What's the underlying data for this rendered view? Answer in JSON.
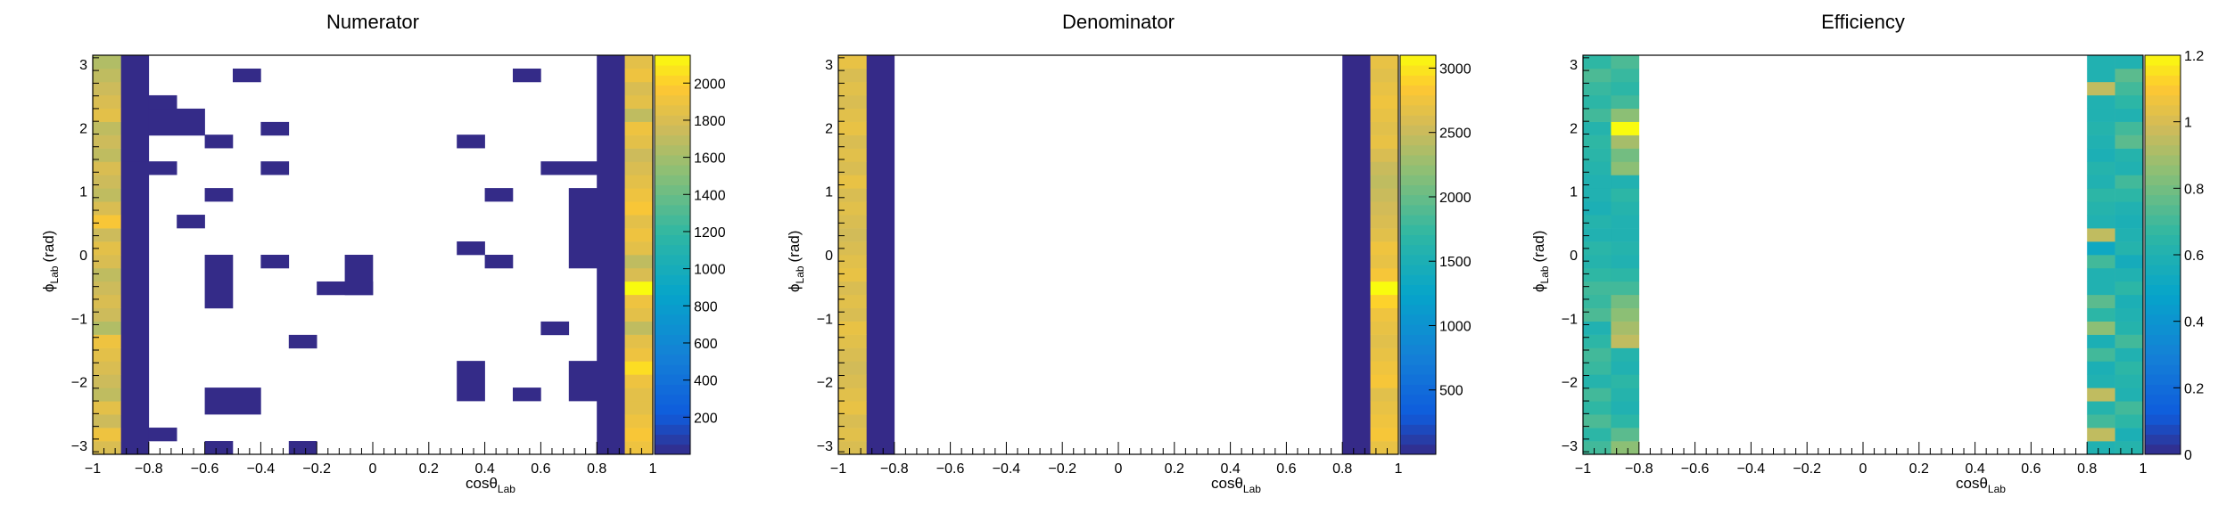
{
  "chart_data": [
    {
      "type": "heatmap",
      "title": "Numerator",
      "x_label": "cosθ",
      "x_sub": "Lab",
      "y_label": "ϕ",
      "y_sub": "Lab",
      "y_unit": "(rad)",
      "xlim": [
        -1,
        1
      ],
      "ylim": [
        -3.14,
        3.14
      ],
      "x_ticks": [
        "−1",
        "−0.8",
        "−0.6",
        "−0.4",
        "−0.2",
        "0",
        "0.2",
        "0.4",
        "0.6",
        "0.8",
        "1"
      ],
      "y_ticks": [
        "−3",
        "−2",
        "−1",
        "0",
        "1",
        "2",
        "3"
      ],
      "z_range": [
        0,
        2150
      ],
      "z_ticks": [
        "200",
        "400",
        "600",
        "800",
        "1000",
        "1200",
        "1400",
        "1600",
        "1800",
        "2000"
      ],
      "edge_left": [
        1800,
        1900,
        1750,
        1850,
        1700,
        1750,
        1800,
        1850,
        1900,
        1650,
        1750,
        1800,
        1750,
        1700,
        1800,
        1850,
        1750,
        1950,
        1800,
        1700,
        1750,
        1800,
        1700,
        1750,
        1700,
        1850,
        1800,
        1750,
        1700,
        1650
      ],
      "edge_right": [
        1900,
        1950,
        1900,
        1850,
        1850,
        1900,
        2050,
        1900,
        1850,
        1700,
        1850,
        1900,
        2150,
        1800,
        1700,
        1850,
        1900,
        1850,
        1950,
        1900,
        1850,
        1800,
        1750,
        1850,
        1900,
        1700,
        1850,
        1800,
        1900,
        1850
      ],
      "interior_cells": [
        [
          -0.9,
          -3.14,
          0.1,
          6.28,
          3
        ],
        [
          0.8,
          -3.14,
          0.1,
          6.28,
          3
        ],
        [
          -0.8,
          -2.93,
          0.1,
          0.21,
          3
        ],
        [
          -0.6,
          -3.14,
          0.1,
          0.21,
          3
        ],
        [
          -0.3,
          -3.14,
          0.1,
          0.21,
          3
        ],
        [
          -0.6,
          -2.51,
          0.2,
          0.42,
          3
        ],
        [
          0.3,
          -2.3,
          0.1,
          0.63,
          3
        ],
        [
          0.5,
          -2.3,
          0.1,
          0.21,
          3
        ],
        [
          0.7,
          -2.3,
          0.1,
          0.63,
          3
        ],
        [
          -0.3,
          -1.47,
          0.1,
          0.21,
          3
        ],
        [
          0.6,
          -1.26,
          0.1,
          0.21,
          3
        ],
        [
          -0.6,
          -0.84,
          0.1,
          0.84,
          3
        ],
        [
          -0.2,
          -0.63,
          0.2,
          0.21,
          3
        ],
        [
          -0.1,
          -0.63,
          0.1,
          0.63,
          3
        ],
        [
          -0.4,
          -0.21,
          0.1,
          0.21,
          3
        ],
        [
          0.4,
          -0.21,
          0.1,
          0.21,
          3
        ],
        [
          0.3,
          0.0,
          0.1,
          0.21,
          3
        ],
        [
          0.7,
          -0.21,
          0.1,
          1.26,
          3
        ],
        [
          -0.7,
          0.42,
          0.1,
          0.21,
          3
        ],
        [
          -0.6,
          0.84,
          0.1,
          0.21,
          3
        ],
        [
          0.4,
          0.84,
          0.1,
          0.21,
          3
        ],
        [
          -0.9,
          1.26,
          0.2,
          0.21,
          3
        ],
        [
          -0.4,
          1.26,
          0.1,
          0.21,
          3
        ],
        [
          0.6,
          1.26,
          0.2,
          0.21,
          3
        ],
        [
          -0.6,
          1.68,
          0.1,
          0.21,
          3
        ],
        [
          0.3,
          1.68,
          0.1,
          0.21,
          3
        ],
        [
          -0.8,
          1.88,
          0.2,
          0.42,
          3
        ],
        [
          -0.4,
          1.88,
          0.1,
          0.21,
          3
        ],
        [
          -0.8,
          2.3,
          0.1,
          0.21,
          3
        ],
        [
          -0.5,
          2.72,
          0.1,
          0.21,
          3
        ],
        [
          0.5,
          2.72,
          0.1,
          0.21,
          3
        ]
      ]
    },
    {
      "type": "heatmap",
      "title": "Denominator",
      "x_label": "cosθ",
      "x_sub": "Lab",
      "y_label": "ϕ",
      "y_sub": "Lab",
      "y_unit": "(rad)",
      "xlim": [
        -1,
        1
      ],
      "ylim": [
        -3.14,
        3.14
      ],
      "x_ticks": [
        "−1",
        "−0.8",
        "−0.6",
        "−0.4",
        "−0.2",
        "0",
        "0.2",
        "0.4",
        "0.6",
        "0.8",
        "1"
      ],
      "y_ticks": [
        "−3",
        "−2",
        "−1",
        "0",
        "1",
        "2",
        "3"
      ],
      "z_range": [
        0,
        3100
      ],
      "z_ticks": [
        "500",
        "1000",
        "1500",
        "2000",
        "2500",
        "3000"
      ],
      "edge_left": [
        2600,
        2650,
        2600,
        2700,
        2650,
        2600,
        2550,
        2600,
        2650,
        2700,
        2600,
        2650,
        2600,
        2700,
        2650,
        2600,
        2550,
        2600,
        2650,
        2600,
        2700,
        2600,
        2650,
        2600,
        2700,
        2650,
        2600,
        2650,
        2600,
        2700
      ],
      "edge_right": [
        2700,
        2800,
        2750,
        2700,
        2650,
        2800,
        2750,
        2700,
        2650,
        2700,
        2750,
        2900,
        3100,
        2800,
        2700,
        2750,
        2650,
        2600,
        2550,
        2500,
        2450,
        2500,
        2600,
        2700,
        2650,
        2700,
        2750,
        2700,
        2650,
        2700
      ],
      "interior_cells": [
        [
          -0.9,
          -3.14,
          0.1,
          6.28,
          3
        ],
        [
          0.8,
          -3.14,
          0.1,
          6.28,
          3
        ]
      ]
    },
    {
      "type": "heatmap",
      "title": "Efficiency",
      "x_label": "cosθ",
      "x_sub": "Lab",
      "y_label": "ϕ",
      "y_sub": "Lab",
      "y_unit": "(rad)",
      "xlim": [
        -1,
        1
      ],
      "ylim": [
        -3.14,
        3.14
      ],
      "x_ticks": [
        "−1",
        "−0.8",
        "−0.6",
        "−0.4",
        "−0.2",
        "0",
        "0.2",
        "0.4",
        "0.6",
        "0.8",
        "1"
      ],
      "y_ticks": [
        "−3",
        "−2",
        "−1",
        "0",
        "1",
        "2",
        "3"
      ],
      "z_range": [
        0,
        1.2
      ],
      "z_ticks": [
        "0",
        "0.2",
        "0.4",
        "0.6",
        "0.8",
        "1",
        "1.2"
      ],
      "col_x": [
        -1.0,
        -0.9,
        0.8,
        0.9
      ],
      "columns": [
        [
          0.7,
          0.65,
          0.72,
          0.66,
          0.7,
          0.62,
          0.68,
          0.7,
          0.65,
          0.6,
          0.72,
          0.68,
          0.7,
          0.66,
          0.62,
          0.64,
          0.6,
          0.62,
          0.58,
          0.6,
          0.6,
          0.62,
          0.64,
          0.66,
          0.62,
          0.7,
          0.65,
          0.68,
          0.72,
          0.66
        ],
        [
          0.85,
          0.75,
          0.65,
          0.6,
          0.62,
          0.65,
          0.6,
          0.62,
          0.95,
          0.9,
          0.85,
          0.8,
          0.7,
          0.65,
          0.6,
          0.62,
          0.6,
          0.6,
          0.62,
          0.65,
          0.6,
          0.85,
          0.8,
          0.9,
          1.2,
          0.85,
          0.7,
          0.65,
          0.68,
          0.72
        ],
        [
          0.6,
          0.95,
          0.7,
          0.62,
          0.95,
          0.6,
          0.58,
          0.7,
          0.58,
          0.85,
          0.65,
          0.75,
          0.6,
          0.6,
          0.7,
          0.52,
          0.95,
          0.6,
          0.62,
          0.65,
          0.6,
          0.62,
          0.58,
          0.6,
          0.62,
          0.6,
          0.6,
          0.95,
          0.6,
          0.6
        ],
        [
          0.62,
          0.58,
          0.65,
          0.7,
          0.6,
          0.62,
          0.65,
          0.6,
          0.7,
          0.62,
          0.6,
          0.58,
          0.65,
          0.6,
          0.55,
          0.62,
          0.6,
          0.58,
          0.6,
          0.65,
          0.7,
          0.6,
          0.62,
          0.75,
          0.7,
          0.6,
          0.65,
          0.7,
          0.75,
          0.6
        ]
      ]
    }
  ]
}
